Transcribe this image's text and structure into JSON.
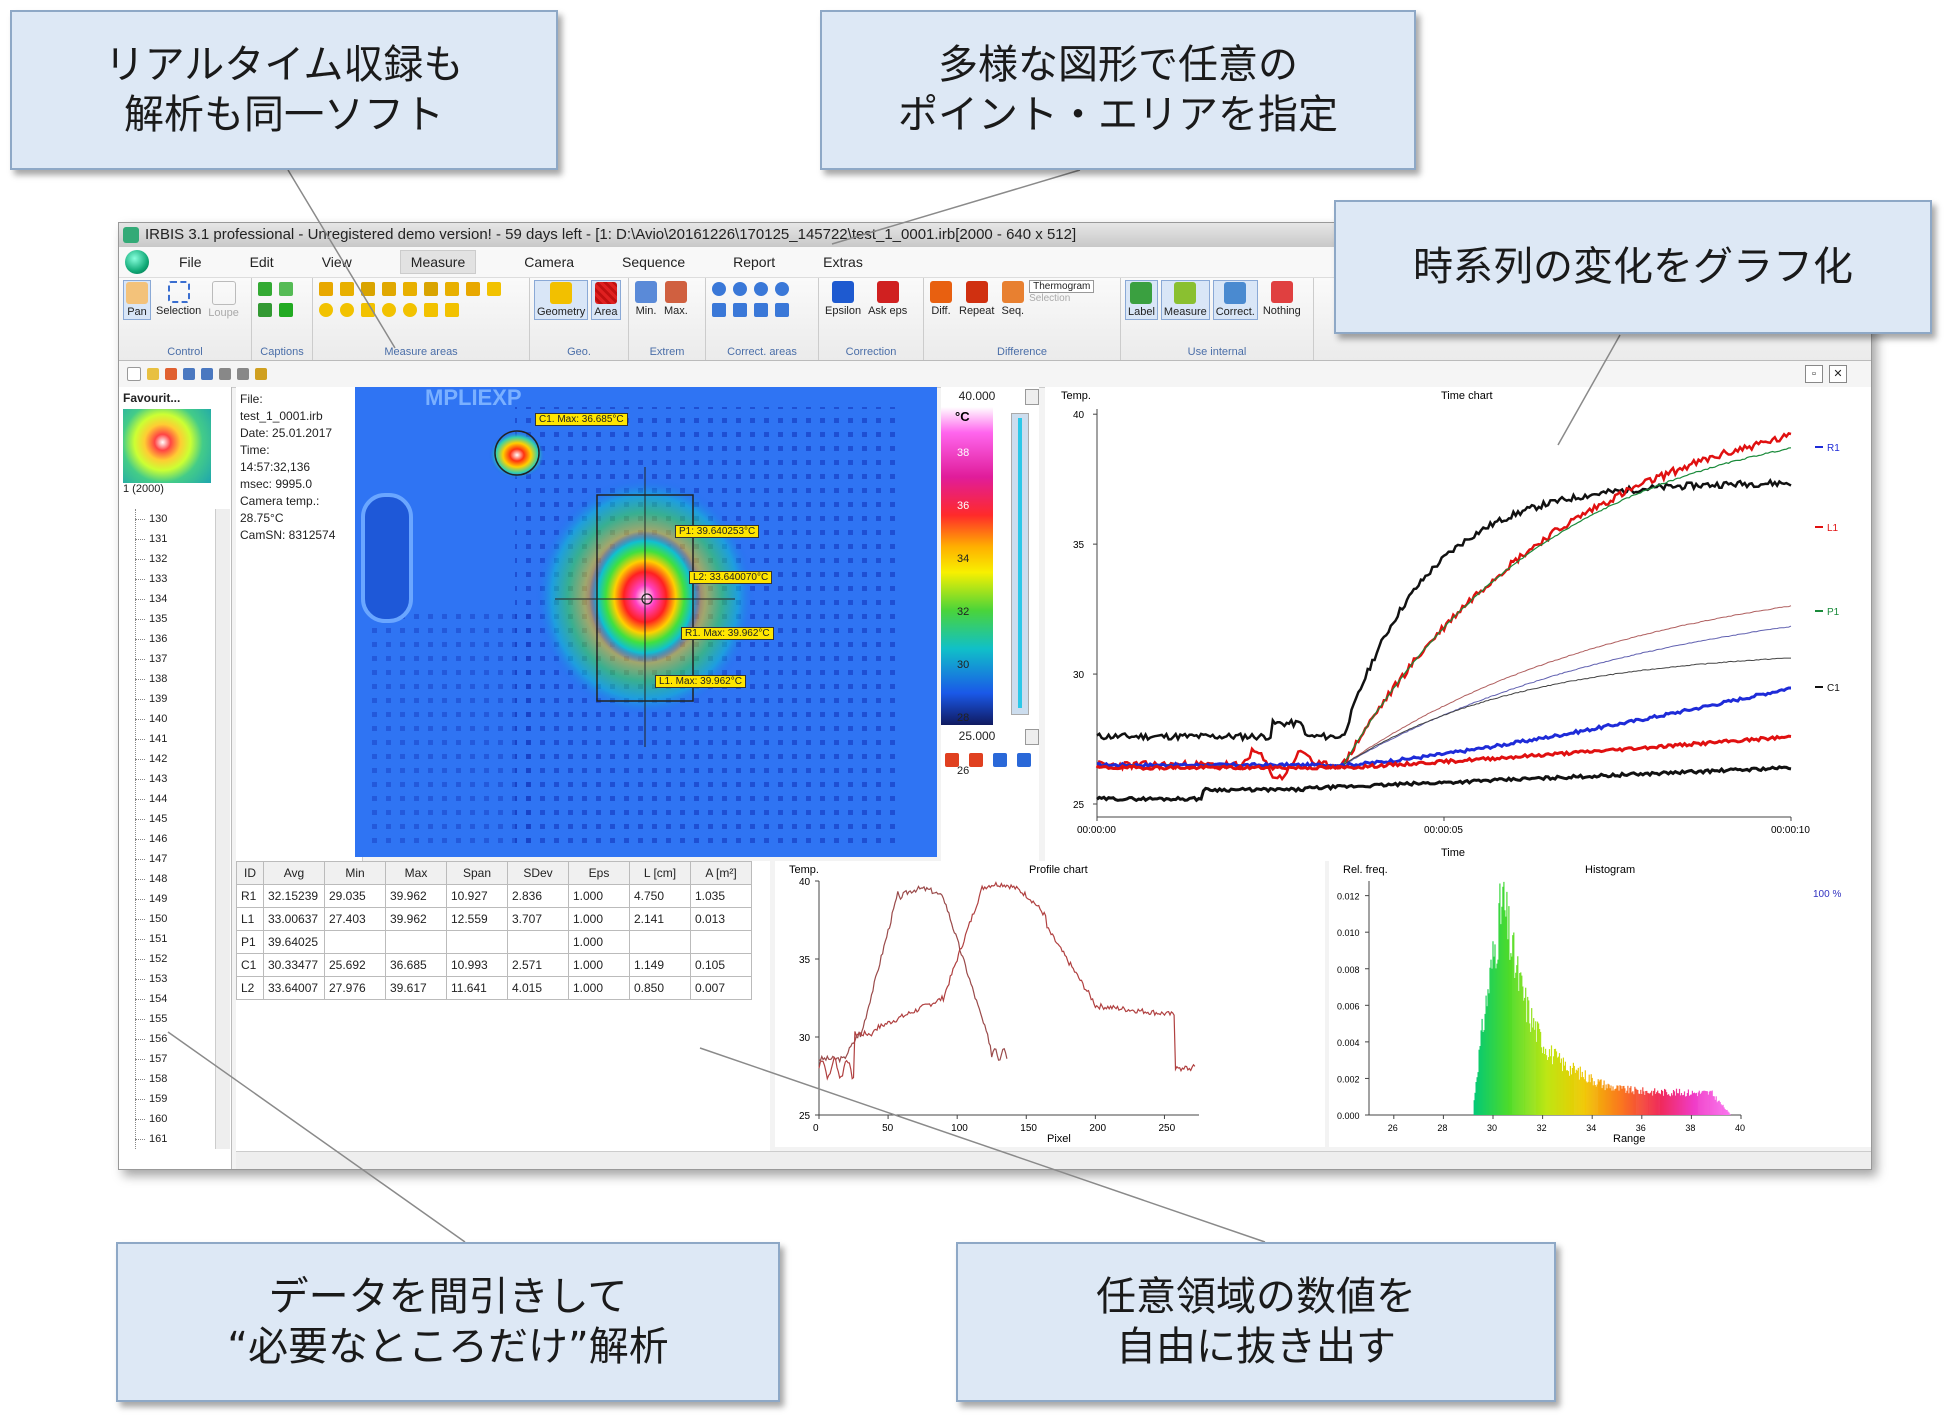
{
  "callouts": {
    "realtime": {
      "line1": "リアルタイム収録も",
      "line2": "解析も同一ソフト"
    },
    "shapes": {
      "line1": "多様な図形で任意の",
      "line2": "ポイント・エリアを指定"
    },
    "timeseries": {
      "line1": "時系列の変化をグラフ化"
    },
    "decimate": {
      "line1": "データを間引きして",
      "line2": "“必要なところだけ”解析"
    },
    "extract": {
      "line1": "任意領域の数値を",
      "line2": "自由に抜き出す"
    }
  },
  "window": {
    "title": "IRBIS 3.1 professional - Unregistered demo version! - 59 days left - [1: D:\\Avio\\20161226\\170125_145722\\test_1_0001.irb[2000 - 640 x 512]",
    "menu": [
      "File",
      "Edit",
      "View",
      "Measure",
      "Camera",
      "Sequence",
      "Report",
      "Extras"
    ],
    "restore_label": "▫",
    "close_label": "✕"
  },
  "ribbon": {
    "control": {
      "label": "Control",
      "buttons": [
        "Pan",
        "Selection",
        "Loupe"
      ]
    },
    "captions": {
      "label": "Captions"
    },
    "measure_areas": {
      "label": "Measure areas"
    },
    "geo": {
      "label": "Geo.",
      "buttons": [
        "Geometry",
        "Area"
      ]
    },
    "extrem": {
      "label": "Extrem",
      "buttons": [
        "Min.",
        "Max."
      ]
    },
    "correct_areas": {
      "label": "Correct. areas"
    },
    "correction": {
      "label": "Correction",
      "buttons": [
        "Epsilon",
        "Ask eps"
      ]
    },
    "difference": {
      "label": "Difference",
      "buttons": [
        "Diff.",
        "Repeat",
        "Seq."
      ],
      "dropdown": "Thermogram",
      "sub": "Selection"
    },
    "use_internal": {
      "label": "Use internal",
      "buttons": [
        "Label",
        "Measure",
        "Correct.",
        "Nothing"
      ]
    }
  },
  "favourites": {
    "title": "Favourit...",
    "thumb_caption": "1 (2000)"
  },
  "frame_list": [
    "130",
    "131",
    "132",
    "133",
    "134",
    "135",
    "136",
    "137",
    "138",
    "139",
    "140",
    "141",
    "142",
    "143",
    "144",
    "145",
    "146",
    "147",
    "148",
    "149",
    "150",
    "151",
    "152",
    "153",
    "154",
    "155",
    "156",
    "157",
    "158",
    "159",
    "160",
    "161"
  ],
  "file_info": {
    "l1": "File:",
    "l2": "test_1_0001.irb",
    "l3": "Date: 25.01.2017",
    "l4": "Time:",
    "l5": "14:57:32,136",
    "l6": "msec: 9995.0",
    "l7": "Camera temp.:",
    "l8": "28.75°C",
    "l9": "CamSN: 8312574"
  },
  "thermo": {
    "tags": {
      "c1": "C1. Max: 36.685°C",
      "p1": "P1: 39.640253°C",
      "l2": "L2: 33.640070°C",
      "r1": "R1. Max: 39.962°C",
      "l1": "L1. Max: 39.962°C"
    },
    "chip_marking": "MPLIEXP"
  },
  "scale": {
    "max": "40.000",
    "min": "25.000",
    "unit": "°C",
    "ticks": [
      "38",
      "36",
      "34",
      "32",
      "30",
      "28",
      "26"
    ]
  },
  "colors": {
    "accent": "#4a6ea8",
    "tag": "#ffe600",
    "r1": "#1e2bd8",
    "l1": "#e01010",
    "p1": "#1a8a3a",
    "c1": "#111111"
  },
  "time_chart": {
    "title": "Time chart",
    "ylabel": "Temp.",
    "xlabel": "Time",
    "y_ticks": [
      "40",
      "35",
      "30",
      "25"
    ],
    "x_ticks": [
      "00:00:00",
      "00:00:05",
      "00:00:10"
    ],
    "legend": [
      "R1",
      "L1",
      "P1",
      "C1"
    ]
  },
  "table": {
    "headers": [
      "ID",
      "Avg",
      "Min",
      "Max",
      "Span",
      "SDev",
      "Eps",
      "L [cm]",
      "A [m²]"
    ],
    "rows": [
      [
        "R1",
        "32.15239",
        "29.035",
        "39.962",
        "10.927",
        "2.836",
        "1.000",
        "4.750",
        "1.035"
      ],
      [
        "L1",
        "33.00637",
        "27.403",
        "39.962",
        "12.559",
        "3.707",
        "1.000",
        "2.141",
        "0.013"
      ],
      [
        "P1",
        "39.64025",
        "",
        "",
        "",
        "",
        "1.000",
        "",
        ""
      ],
      [
        "C1",
        "30.33477",
        "25.692",
        "36.685",
        "10.993",
        "2.571",
        "1.000",
        "1.149",
        "0.105"
      ],
      [
        "L2",
        "33.64007",
        "27.976",
        "39.617",
        "11.641",
        "4.015",
        "1.000",
        "0.850",
        "0.007"
      ]
    ]
  },
  "profile_chart": {
    "title": "Profile chart",
    "ylabel": "Temp.",
    "xlabel": "Pixel",
    "y_ticks": [
      "40",
      "35",
      "30",
      "25"
    ],
    "x_ticks": [
      "0",
      "50",
      "100",
      "150",
      "200",
      "250"
    ]
  },
  "histogram": {
    "title": "Histogram",
    "ylabel": "Rel. freq.",
    "xlabel": "Range",
    "percent": "100 %",
    "y_ticks": [
      "0.012",
      "0.010",
      "0.008",
      "0.006",
      "0.004",
      "0.002",
      "0.000"
    ],
    "x_ticks": [
      "26",
      "28",
      "30",
      "32",
      "34",
      "36",
      "38",
      "40"
    ]
  }
}
